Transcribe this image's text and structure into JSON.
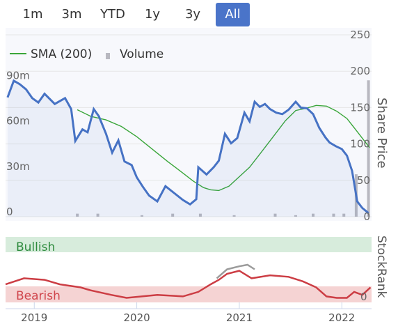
{
  "range_tabs": [
    {
      "label": "1m",
      "active": false
    },
    {
      "label": "3m",
      "active": false
    },
    {
      "label": "YTD",
      "active": false
    },
    {
      "label": "1y",
      "active": false
    },
    {
      "label": "3y",
      "active": false
    },
    {
      "label": "All",
      "active": true
    }
  ],
  "colors": {
    "price": "#4672c4",
    "sma": "#3aa63a",
    "volume": "#b8b8c0",
    "bullish_band": "#d7ecdc",
    "bearish_band": "#f5d3d3",
    "bullish_text": "#2e8b3e",
    "bearish_text": "#d0454c",
    "rank_line": "#cc3d44",
    "rank_neutral": "#9b9b9b",
    "active_tab": "#4a74c9"
  },
  "chart_data": {
    "type": "line",
    "legend": [
      "SMA (200)",
      "Volume"
    ],
    "legend_position": "top-left",
    "y_right": {
      "label": "Share Price",
      "range": [
        0,
        250
      ],
      "ticks": [
        "250",
        "200",
        "150",
        "100",
        "50",
        "0"
      ]
    },
    "y_left": {
      "label": "",
      "range": [
        0,
        120
      ],
      "ticks": [
        "90m",
        "60m",
        "30m",
        "0"
      ]
    },
    "x_ticks": [
      "2019",
      "2020",
      "2021",
      "2022"
    ],
    "stockrank": {
      "label": "StockRank",
      "bullish_label": "Bullish",
      "bearish_label": "Bearish",
      "ticks": [
        "0"
      ]
    },
    "series": [
      {
        "name": "SMA (200)",
        "points": [
          [
            2019.42,
            147
          ],
          [
            2019.55,
            138
          ],
          [
            2019.7,
            133
          ],
          [
            2019.85,
            124
          ],
          [
            2020.0,
            110
          ],
          [
            2020.15,
            93
          ],
          [
            2020.3,
            76
          ],
          [
            2020.45,
            60
          ],
          [
            2020.55,
            49
          ],
          [
            2020.65,
            40
          ],
          [
            2020.72,
            37
          ],
          [
            2020.8,
            36
          ],
          [
            2020.9,
            42
          ],
          [
            2021.0,
            55
          ],
          [
            2021.1,
            68
          ],
          [
            2021.2,
            86
          ],
          [
            2021.32,
            108
          ],
          [
            2021.45,
            132
          ],
          [
            2021.55,
            146
          ],
          [
            2021.65,
            149
          ],
          [
            2021.75,
            153
          ],
          [
            2021.85,
            152
          ],
          [
            2021.95,
            145
          ],
          [
            2022.05,
            135
          ],
          [
            2022.15,
            117
          ],
          [
            2022.27,
            95
          ]
        ]
      },
      {
        "name": "Price",
        "points": [
          [
            2018.74,
            164
          ],
          [
            2018.8,
            187
          ],
          [
            2018.86,
            182
          ],
          [
            2018.92,
            175
          ],
          [
            2018.98,
            163
          ],
          [
            2019.04,
            157
          ],
          [
            2019.1,
            169
          ],
          [
            2019.2,
            155
          ],
          [
            2019.3,
            163
          ],
          [
            2019.36,
            148
          ],
          [
            2019.4,
            104
          ],
          [
            2019.47,
            120
          ],
          [
            2019.52,
            116
          ],
          [
            2019.58,
            148
          ],
          [
            2019.63,
            138
          ],
          [
            2019.7,
            114
          ],
          [
            2019.76,
            88
          ],
          [
            2019.82,
            105
          ],
          [
            2019.88,
            76
          ],
          [
            2019.95,
            71
          ],
          [
            2020.0,
            54
          ],
          [
            2020.06,
            41
          ],
          [
            2020.12,
            29
          ],
          [
            2020.2,
            21
          ],
          [
            2020.28,
            42
          ],
          [
            2020.36,
            33
          ],
          [
            2020.45,
            23
          ],
          [
            2020.52,
            17
          ],
          [
            2020.58,
            24
          ],
          [
            2020.6,
            68
          ],
          [
            2020.68,
            58
          ],
          [
            2020.75,
            68
          ],
          [
            2020.8,
            77
          ],
          [
            2020.86,
            114
          ],
          [
            2020.92,
            101
          ],
          [
            2020.98,
            108
          ],
          [
            2021.05,
            143
          ],
          [
            2021.1,
            131
          ],
          [
            2021.15,
            158
          ],
          [
            2021.2,
            151
          ],
          [
            2021.25,
            155
          ],
          [
            2021.3,
            148
          ],
          [
            2021.36,
            143
          ],
          [
            2021.42,
            141
          ],
          [
            2021.48,
            147
          ],
          [
            2021.55,
            158
          ],
          [
            2021.6,
            150
          ],
          [
            2021.66,
            149
          ],
          [
            2021.72,
            141
          ],
          [
            2021.78,
            122
          ],
          [
            2021.84,
            109
          ],
          [
            2021.88,
            102
          ],
          [
            2021.94,
            97
          ],
          [
            2022.0,
            93
          ],
          [
            2022.05,
            84
          ],
          [
            2022.1,
            63
          ],
          [
            2022.15,
            21
          ],
          [
            2022.2,
            12
          ],
          [
            2022.26,
            5
          ]
        ]
      },
      {
        "name": "Volume",
        "points": [
          [
            2019.42,
            2
          ],
          [
            2019.62,
            2
          ],
          [
            2020.05,
            1
          ],
          [
            2020.35,
            2
          ],
          [
            2020.62,
            2
          ],
          [
            2020.95,
            1
          ],
          [
            2021.35,
            2
          ],
          [
            2021.55,
            1
          ],
          [
            2021.72,
            2
          ],
          [
            2021.92,
            2
          ],
          [
            2022.02,
            2
          ],
          [
            2022.14,
            28
          ],
          [
            2022.26,
            90
          ]
        ]
      },
      {
        "name": "StockRank",
        "points": [
          [
            2018.72,
            12
          ],
          [
            2018.9,
            16
          ],
          [
            2019.1,
            15
          ],
          [
            2019.25,
            12
          ],
          [
            2019.45,
            10
          ],
          [
            2019.55,
            8
          ],
          [
            2019.75,
            5
          ],
          [
            2019.9,
            3
          ],
          [
            2020.2,
            5
          ],
          [
            2020.45,
            4
          ],
          [
            2020.6,
            7
          ],
          [
            2020.72,
            12
          ],
          [
            2020.8,
            15
          ],
          [
            2020.88,
            19
          ],
          [
            2021.0,
            21
          ],
          [
            2021.12,
            16
          ],
          [
            2021.3,
            18
          ],
          [
            2021.48,
            17
          ],
          [
            2021.62,
            14
          ],
          [
            2021.75,
            10
          ],
          [
            2021.85,
            4
          ],
          [
            2021.95,
            3
          ],
          [
            2022.05,
            3
          ],
          [
            2022.12,
            7
          ],
          [
            2022.2,
            5
          ],
          [
            2022.28,
            10
          ]
        ]
      },
      {
        "name": "StockRank (neutral)",
        "points": [
          [
            2020.78,
            16
          ],
          [
            2020.88,
            22
          ],
          [
            2021.0,
            24
          ],
          [
            2021.08,
            25
          ],
          [
            2021.15,
            22
          ]
        ]
      }
    ]
  }
}
